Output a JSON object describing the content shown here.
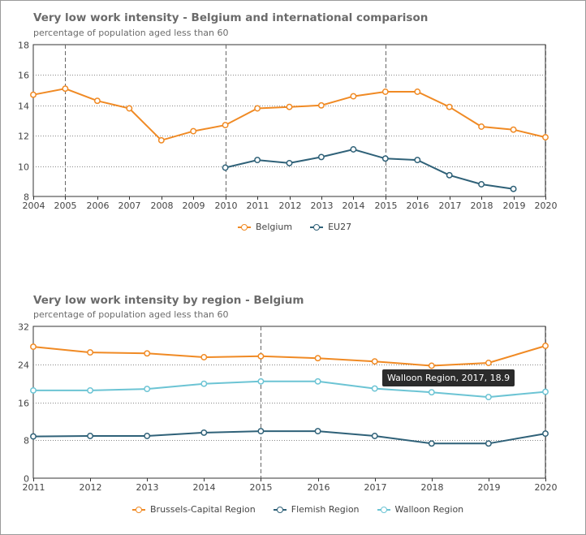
{
  "chart_data": [
    {
      "type": "line",
      "title": "Very low work intensity - Belgium and international comparison",
      "subtitle": "percentage of population aged less than 60",
      "x": [
        2004,
        2005,
        2006,
        2007,
        2008,
        2009,
        2010,
        2011,
        2012,
        2013,
        2014,
        2015,
        2016,
        2017,
        2018,
        2019,
        2020
      ],
      "x_tick_labels": [
        "2004",
        "2005",
        "2006",
        "2007",
        "2008",
        "2009",
        "2010",
        "2011",
        "2012",
        "2013",
        "2014",
        "2015",
        "2016",
        "2017",
        "2018",
        "2019",
        "2020"
      ],
      "ylim": [
        8,
        18
      ],
      "y_ticks": [
        8,
        10,
        12,
        14,
        16,
        18
      ],
      "y_tick_labels": [
        "8",
        "10",
        "12",
        "14",
        "16",
        "18"
      ],
      "x_markers": [
        2005,
        2010,
        2015,
        2020
      ],
      "legend_position": "bottom",
      "series": [
        {
          "name": "Belgium",
          "color": "#f08a24",
          "values": [
            14.7,
            15.1,
            14.3,
            13.8,
            11.7,
            12.3,
            12.7,
            13.8,
            13.9,
            14.0,
            14.6,
            14.9,
            14.9,
            13.9,
            12.6,
            12.4,
            11.9
          ]
        },
        {
          "name": "EU27",
          "color": "#2f6178",
          "values": [
            null,
            null,
            null,
            null,
            null,
            null,
            9.9,
            10.4,
            10.2,
            10.6,
            11.1,
            10.5,
            10.4,
            9.4,
            8.8,
            8.5,
            null
          ]
        }
      ]
    },
    {
      "type": "line",
      "title": "Very low work intensity by region - Belgium",
      "subtitle": "percentage of population aged less than 60",
      "x": [
        2011,
        2012,
        2013,
        2014,
        2015,
        2016,
        2017,
        2018,
        2019,
        2020
      ],
      "x_tick_labels": [
        "2011",
        "2012",
        "2013",
        "2014",
        "2015",
        "2016",
        "2017",
        "2018",
        "2019",
        "2020"
      ],
      "ylim": [
        0,
        32
      ],
      "y_ticks": [
        0,
        8,
        16,
        24,
        32
      ],
      "y_tick_labels": [
        "0",
        "8",
        "16",
        "24",
        "32"
      ],
      "x_markers": [
        2015,
        2020
      ],
      "legend_position": "bottom",
      "series": [
        {
          "name": "Brussels-Capital Region",
          "color": "#f08a24",
          "values": [
            27.7,
            26.5,
            26.3,
            25.5,
            25.7,
            25.3,
            24.6,
            23.7,
            24.3,
            27.9
          ]
        },
        {
          "name": "Flemish Region",
          "color": "#2f6178",
          "values": [
            8.8,
            8.9,
            8.9,
            9.6,
            9.9,
            9.9,
            8.9,
            7.3,
            7.3,
            9.4
          ]
        },
        {
          "name": "Walloon Region",
          "color": "#6cc4d4",
          "values": [
            18.5,
            18.5,
            18.8,
            19.9,
            20.4,
            20.4,
            18.9,
            18.1,
            17.1,
            18.2
          ]
        }
      ],
      "tooltip": {
        "text": "Walloon Region, 2017, 18.9"
      }
    }
  ]
}
